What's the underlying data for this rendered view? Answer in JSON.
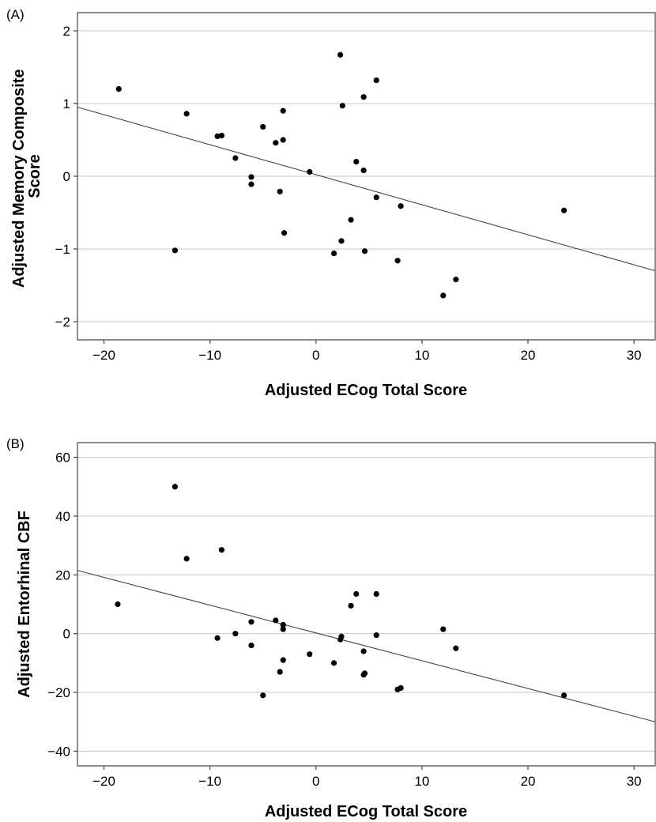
{
  "chart_data": [
    {
      "type": "scatter",
      "panel_label": "(A)",
      "xlabel": "Adjusted ECog Total Score",
      "ylabel_lines": [
        "Adjusted Memory Composite",
        "Score"
      ],
      "xlim": [
        -22.5,
        32
      ],
      "ylim": [
        -2.25,
        2.25
      ],
      "xticks": [
        -20,
        -10,
        0,
        10,
        20,
        30
      ],
      "xtick_labels": [
        "−20",
        "−10",
        "0",
        "10",
        "20",
        "30"
      ],
      "yticks": [
        -2,
        -1,
        0,
        1,
        2
      ],
      "ytick_labels": [
        "−2",
        "−1",
        "0",
        "1",
        "2"
      ],
      "grid": "horizontal",
      "fit_line": {
        "x": [
          -22.5,
          32
        ],
        "y": [
          0.95,
          -1.3
        ]
      },
      "points": [
        {
          "x": -18.6,
          "y": 1.2
        },
        {
          "x": -13.3,
          "y": -1.02
        },
        {
          "x": -12.2,
          "y": 0.86
        },
        {
          "x": -9.3,
          "y": 0.55
        },
        {
          "x": -8.9,
          "y": 0.56
        },
        {
          "x": -7.6,
          "y": 0.25
        },
        {
          "x": -6.1,
          "y": -0.01
        },
        {
          "x": -6.1,
          "y": -0.11
        },
        {
          "x": -5.0,
          "y": 0.68
        },
        {
          "x": -3.8,
          "y": 0.46
        },
        {
          "x": -3.4,
          "y": -0.21
        },
        {
          "x": -3.1,
          "y": 0.9
        },
        {
          "x": -3.1,
          "y": 0.5
        },
        {
          "x": -3.0,
          "y": -0.78
        },
        {
          "x": -0.6,
          "y": 0.06
        },
        {
          "x": 1.7,
          "y": -1.06
        },
        {
          "x": 2.3,
          "y": 1.67
        },
        {
          "x": 2.4,
          "y": -0.89
        },
        {
          "x": 2.5,
          "y": 0.97
        },
        {
          "x": 3.3,
          "y": -0.6
        },
        {
          "x": 3.8,
          "y": 0.2
        },
        {
          "x": 4.5,
          "y": 1.09
        },
        {
          "x": 4.5,
          "y": 0.08
        },
        {
          "x": 4.6,
          "y": -1.03
        },
        {
          "x": 5.7,
          "y": 1.32
        },
        {
          "x": 5.7,
          "y": -0.29
        },
        {
          "x": 7.7,
          "y": -1.16
        },
        {
          "x": 8.0,
          "y": -0.41
        },
        {
          "x": 12.0,
          "y": -1.64
        },
        {
          "x": 13.2,
          "y": -1.42
        },
        {
          "x": 23.4,
          "y": -0.47
        }
      ]
    },
    {
      "type": "scatter",
      "panel_label": "(B)",
      "xlabel": "Adjusted ECog Total Score",
      "ylabel_lines": [
        "Adjusted Entorhinal CBF"
      ],
      "xlim": [
        -22.5,
        32
      ],
      "ylim": [
        -45,
        65
      ],
      "xticks": [
        -20,
        -10,
        0,
        10,
        20,
        30
      ],
      "xtick_labels": [
        "−20",
        "−10",
        "0",
        "10",
        "20",
        "30"
      ],
      "yticks": [
        -40,
        -20,
        0,
        20,
        40,
        60
      ],
      "ytick_labels": [
        "−40",
        "−20",
        "0",
        "20",
        "40",
        "60"
      ],
      "grid": "horizontal",
      "fit_line": {
        "x": [
          -22.5,
          32
        ],
        "y": [
          21.5,
          -30
        ]
      },
      "points": [
        {
          "x": -18.7,
          "y": 10
        },
        {
          "x": -13.3,
          "y": 50
        },
        {
          "x": -12.2,
          "y": 25.5
        },
        {
          "x": -9.3,
          "y": -1.5
        },
        {
          "x": -8.9,
          "y": 28.5
        },
        {
          "x": -7.6,
          "y": 0
        },
        {
          "x": -6.1,
          "y": 4
        },
        {
          "x": -6.1,
          "y": -4
        },
        {
          "x": -5.0,
          "y": -21
        },
        {
          "x": -3.8,
          "y": 4.5
        },
        {
          "x": -3.4,
          "y": -13
        },
        {
          "x": -3.1,
          "y": 3
        },
        {
          "x": -3.1,
          "y": 1.5
        },
        {
          "x": -3.1,
          "y": -9
        },
        {
          "x": -0.6,
          "y": -7
        },
        {
          "x": 1.7,
          "y": -10
        },
        {
          "x": 2.3,
          "y": -2
        },
        {
          "x": 2.4,
          "y": -1
        },
        {
          "x": 3.3,
          "y": 9.5
        },
        {
          "x": 3.8,
          "y": 13.5
        },
        {
          "x": 4.5,
          "y": -6
        },
        {
          "x": 4.5,
          "y": -14
        },
        {
          "x": 4.6,
          "y": -13.5
        },
        {
          "x": 5.7,
          "y": 13.5
        },
        {
          "x": 5.7,
          "y": -0.5
        },
        {
          "x": 7.7,
          "y": -19
        },
        {
          "x": 8.0,
          "y": -18.5
        },
        {
          "x": 12.0,
          "y": 1.5
        },
        {
          "x": 13.2,
          "y": -5
        },
        {
          "x": 23.4,
          "y": -21
        }
      ]
    }
  ]
}
